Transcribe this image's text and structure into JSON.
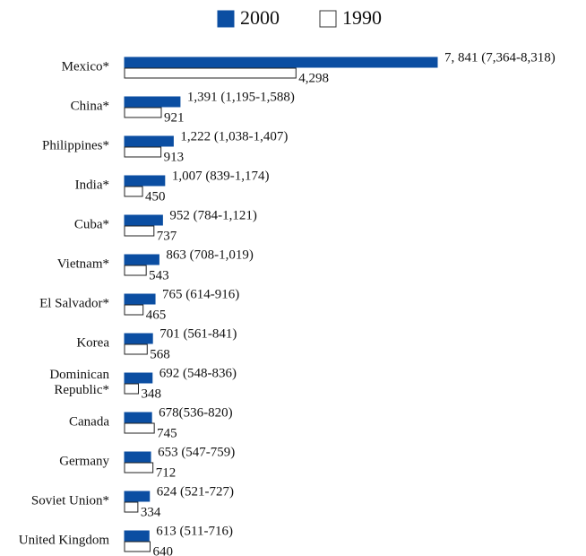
{
  "chart_data": {
    "type": "hbar",
    "categories": [
      "Mexico*",
      "China*",
      "Philippines*",
      "India*",
      "Cuba*",
      "Vietnam*",
      "El Salvador*",
      "Korea",
      "Dominican Republic*",
      "Canada",
      "Germany",
      "Soviet Union*",
      "United Kingdom"
    ],
    "series": [
      {
        "name": "2000",
        "color": "#0b4ea2",
        "values": [
          7841,
          1391,
          1222,
          1007,
          952,
          863,
          765,
          701,
          692,
          678,
          653,
          624,
          613
        ],
        "value_labels": [
          "7, 841 (7,364-8,318)",
          "1,391 (1,195-1,588)",
          "1,222 (1,038-1,407)",
          "1,007 (839-1,174)",
          "952 (784-1,121)",
          "863 (708-1,019)",
          "765 (614-916)",
          "701 (561-841)",
          "692 (548-836)",
          "678(536-820)",
          "653 (547-759)",
          "624 (521-727)",
          "613 (511-716)"
        ]
      },
      {
        "name": "1990",
        "color": "#ffffff",
        "values": [
          4298,
          921,
          913,
          450,
          737,
          543,
          465,
          568,
          348,
          745,
          712,
          334,
          640
        ],
        "value_labels": [
          "4,298",
          "921",
          "913",
          "450",
          "737",
          "543",
          "465",
          "568",
          "348",
          "745",
          "712",
          "334",
          "640"
        ]
      }
    ],
    "legend": "top"
  }
}
